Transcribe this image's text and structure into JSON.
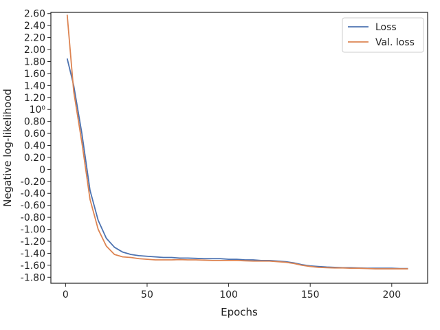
{
  "chart_data": {
    "type": "line",
    "title": "",
    "xlabel": "Epochs",
    "ylabel": "Negative log-likelihood",
    "xlim": [
      -9,
      222
    ],
    "ylim": [
      -1.9,
      2.62
    ],
    "x_ticks": [
      0,
      50,
      100,
      150,
      200
    ],
    "x_tick_labels": [
      "0",
      "50",
      "100",
      "150",
      "200"
    ],
    "y_ticks": [
      -1.8,
      -1.6,
      -1.4,
      -1.2,
      -1.0,
      -0.8,
      -0.6,
      -0.4,
      -0.2,
      0,
      0.2,
      0.4,
      0.6,
      0.8,
      1.0,
      1.2,
      1.4,
      1.6,
      1.8,
      2.0,
      2.2,
      2.4,
      2.6
    ],
    "y_tick_labels": [
      "-1.80",
      "-1.60",
      "-1.40",
      "-1.20",
      "-1.00",
      "-0.80",
      "-0.60",
      "-0.40",
      "-0.20",
      "0",
      "0.20",
      "0.40",
      "0.60",
      "0.80",
      "10⁰",
      "1.20",
      "1.40",
      "1.60",
      "1.80",
      "2.00",
      "2.20",
      "2.40",
      "2.60"
    ],
    "grid": false,
    "legend_position": "top-right",
    "series": [
      {
        "name": "Loss",
        "color": "#4c72b0",
        "x": [
          1,
          5,
          10,
          15,
          20,
          25,
          30,
          35,
          40,
          45,
          50,
          55,
          60,
          65,
          70,
          75,
          80,
          85,
          90,
          95,
          100,
          105,
          110,
          115,
          120,
          125,
          130,
          135,
          140,
          145,
          150,
          155,
          160,
          165,
          170,
          175,
          180,
          185,
          190,
          195,
          200,
          205,
          210
        ],
        "y": [
          1.85,
          1.4,
          0.6,
          -0.35,
          -0.85,
          -1.15,
          -1.3,
          -1.38,
          -1.42,
          -1.44,
          -1.45,
          -1.46,
          -1.47,
          -1.47,
          -1.48,
          -1.48,
          -1.485,
          -1.49,
          -1.49,
          -1.49,
          -1.5,
          -1.5,
          -1.51,
          -1.51,
          -1.52,
          -1.52,
          -1.53,
          -1.54,
          -1.56,
          -1.59,
          -1.61,
          -1.62,
          -1.63,
          -1.635,
          -1.64,
          -1.64,
          -1.645,
          -1.65,
          -1.65,
          -1.65,
          -1.65,
          -1.655,
          -1.655
        ]
      },
      {
        "name": "Val. loss",
        "color": "#dd8452",
        "x": [
          1,
          5,
          10,
          15,
          20,
          25,
          30,
          35,
          40,
          45,
          50,
          55,
          60,
          65,
          70,
          75,
          80,
          85,
          90,
          95,
          100,
          105,
          110,
          115,
          120,
          125,
          130,
          135,
          140,
          145,
          150,
          155,
          160,
          165,
          170,
          175,
          180,
          185,
          190,
          195,
          200,
          205,
          210
        ],
        "y": [
          2.58,
          1.3,
          0.45,
          -0.5,
          -1.0,
          -1.28,
          -1.42,
          -1.46,
          -1.47,
          -1.49,
          -1.5,
          -1.51,
          -1.51,
          -1.51,
          -1.505,
          -1.51,
          -1.51,
          -1.515,
          -1.52,
          -1.52,
          -1.52,
          -1.52,
          -1.525,
          -1.53,
          -1.53,
          -1.53,
          -1.54,
          -1.55,
          -1.57,
          -1.6,
          -1.62,
          -1.635,
          -1.64,
          -1.645,
          -1.645,
          -1.65,
          -1.65,
          -1.655,
          -1.66,
          -1.66,
          -1.66,
          -1.66,
          -1.66
        ]
      }
    ]
  }
}
